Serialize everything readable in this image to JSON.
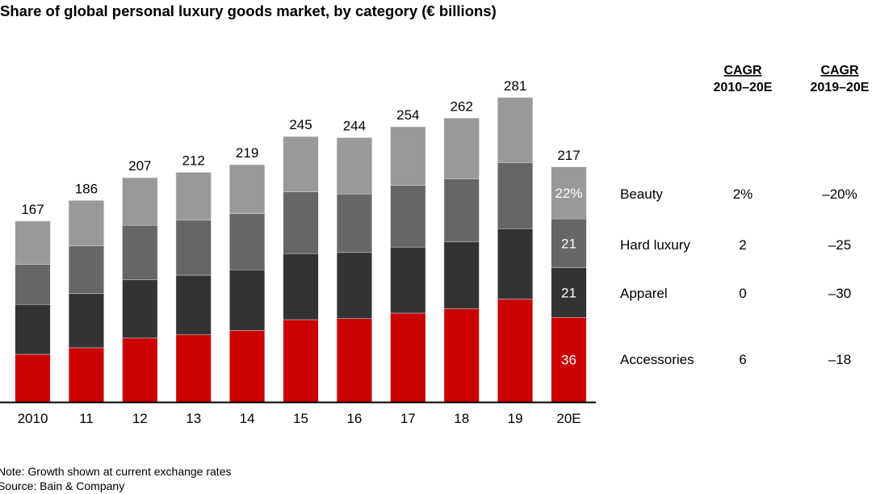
{
  "chart_data": {
    "type": "bar",
    "stacked": true,
    "title": "Share of global personal luxury goods market, by category (€ billions)",
    "categories": [
      "2010",
      "11",
      "12",
      "13",
      "14",
      "15",
      "16",
      "17",
      "18",
      "19",
      "20E"
    ],
    "totals": [
      167,
      186,
      207,
      212,
      219,
      245,
      244,
      254,
      262,
      281,
      217
    ],
    "series": [
      {
        "name": "Accessories",
        "color": "#cc0000",
        "values": [
          44,
          50,
          59,
          62,
          66,
          76,
          77,
          82,
          86,
          95,
          78
        ]
      },
      {
        "name": "Apparel",
        "color": "#333333",
        "values": [
          46,
          50,
          54,
          55,
          56,
          61,
          61,
          61,
          62,
          65,
          46
        ]
      },
      {
        "name": "Hard luxury",
        "color": "#666666",
        "values": [
          37,
          44,
          50,
          51,
          52,
          57,
          54,
          57,
          58,
          61,
          45
        ]
      },
      {
        "name": "Beauty",
        "color": "#999999",
        "values": [
          40,
          42,
          44,
          44,
          45,
          51,
          52,
          54,
          56,
          60,
          48
        ]
      }
    ],
    "segment_labels_20E": {
      "Beauty": "22%",
      "Hard luxury": "21",
      "Apparel": "21",
      "Accessories": "36"
    },
    "ylim": [
      0,
      300
    ],
    "grid": false,
    "cagr_table": {
      "headers": [
        {
          "top": "CAGR",
          "bottom": "2010–20E"
        },
        {
          "top": "CAGR",
          "bottom": "2019–20E"
        }
      ],
      "rows": [
        {
          "label": "Beauty",
          "c1": "2%",
          "c2": "–20%"
        },
        {
          "label": "Hard luxury",
          "c1": "2",
          "c2": "–25"
        },
        {
          "label": "Apparel",
          "c1": "0",
          "c2": "–30"
        },
        {
          "label": "Accessories",
          "c1": "6",
          "c2": "–18"
        }
      ]
    },
    "note": "Note: Growth shown at current exchange rates",
    "source": "Source: Bain & Company"
  }
}
